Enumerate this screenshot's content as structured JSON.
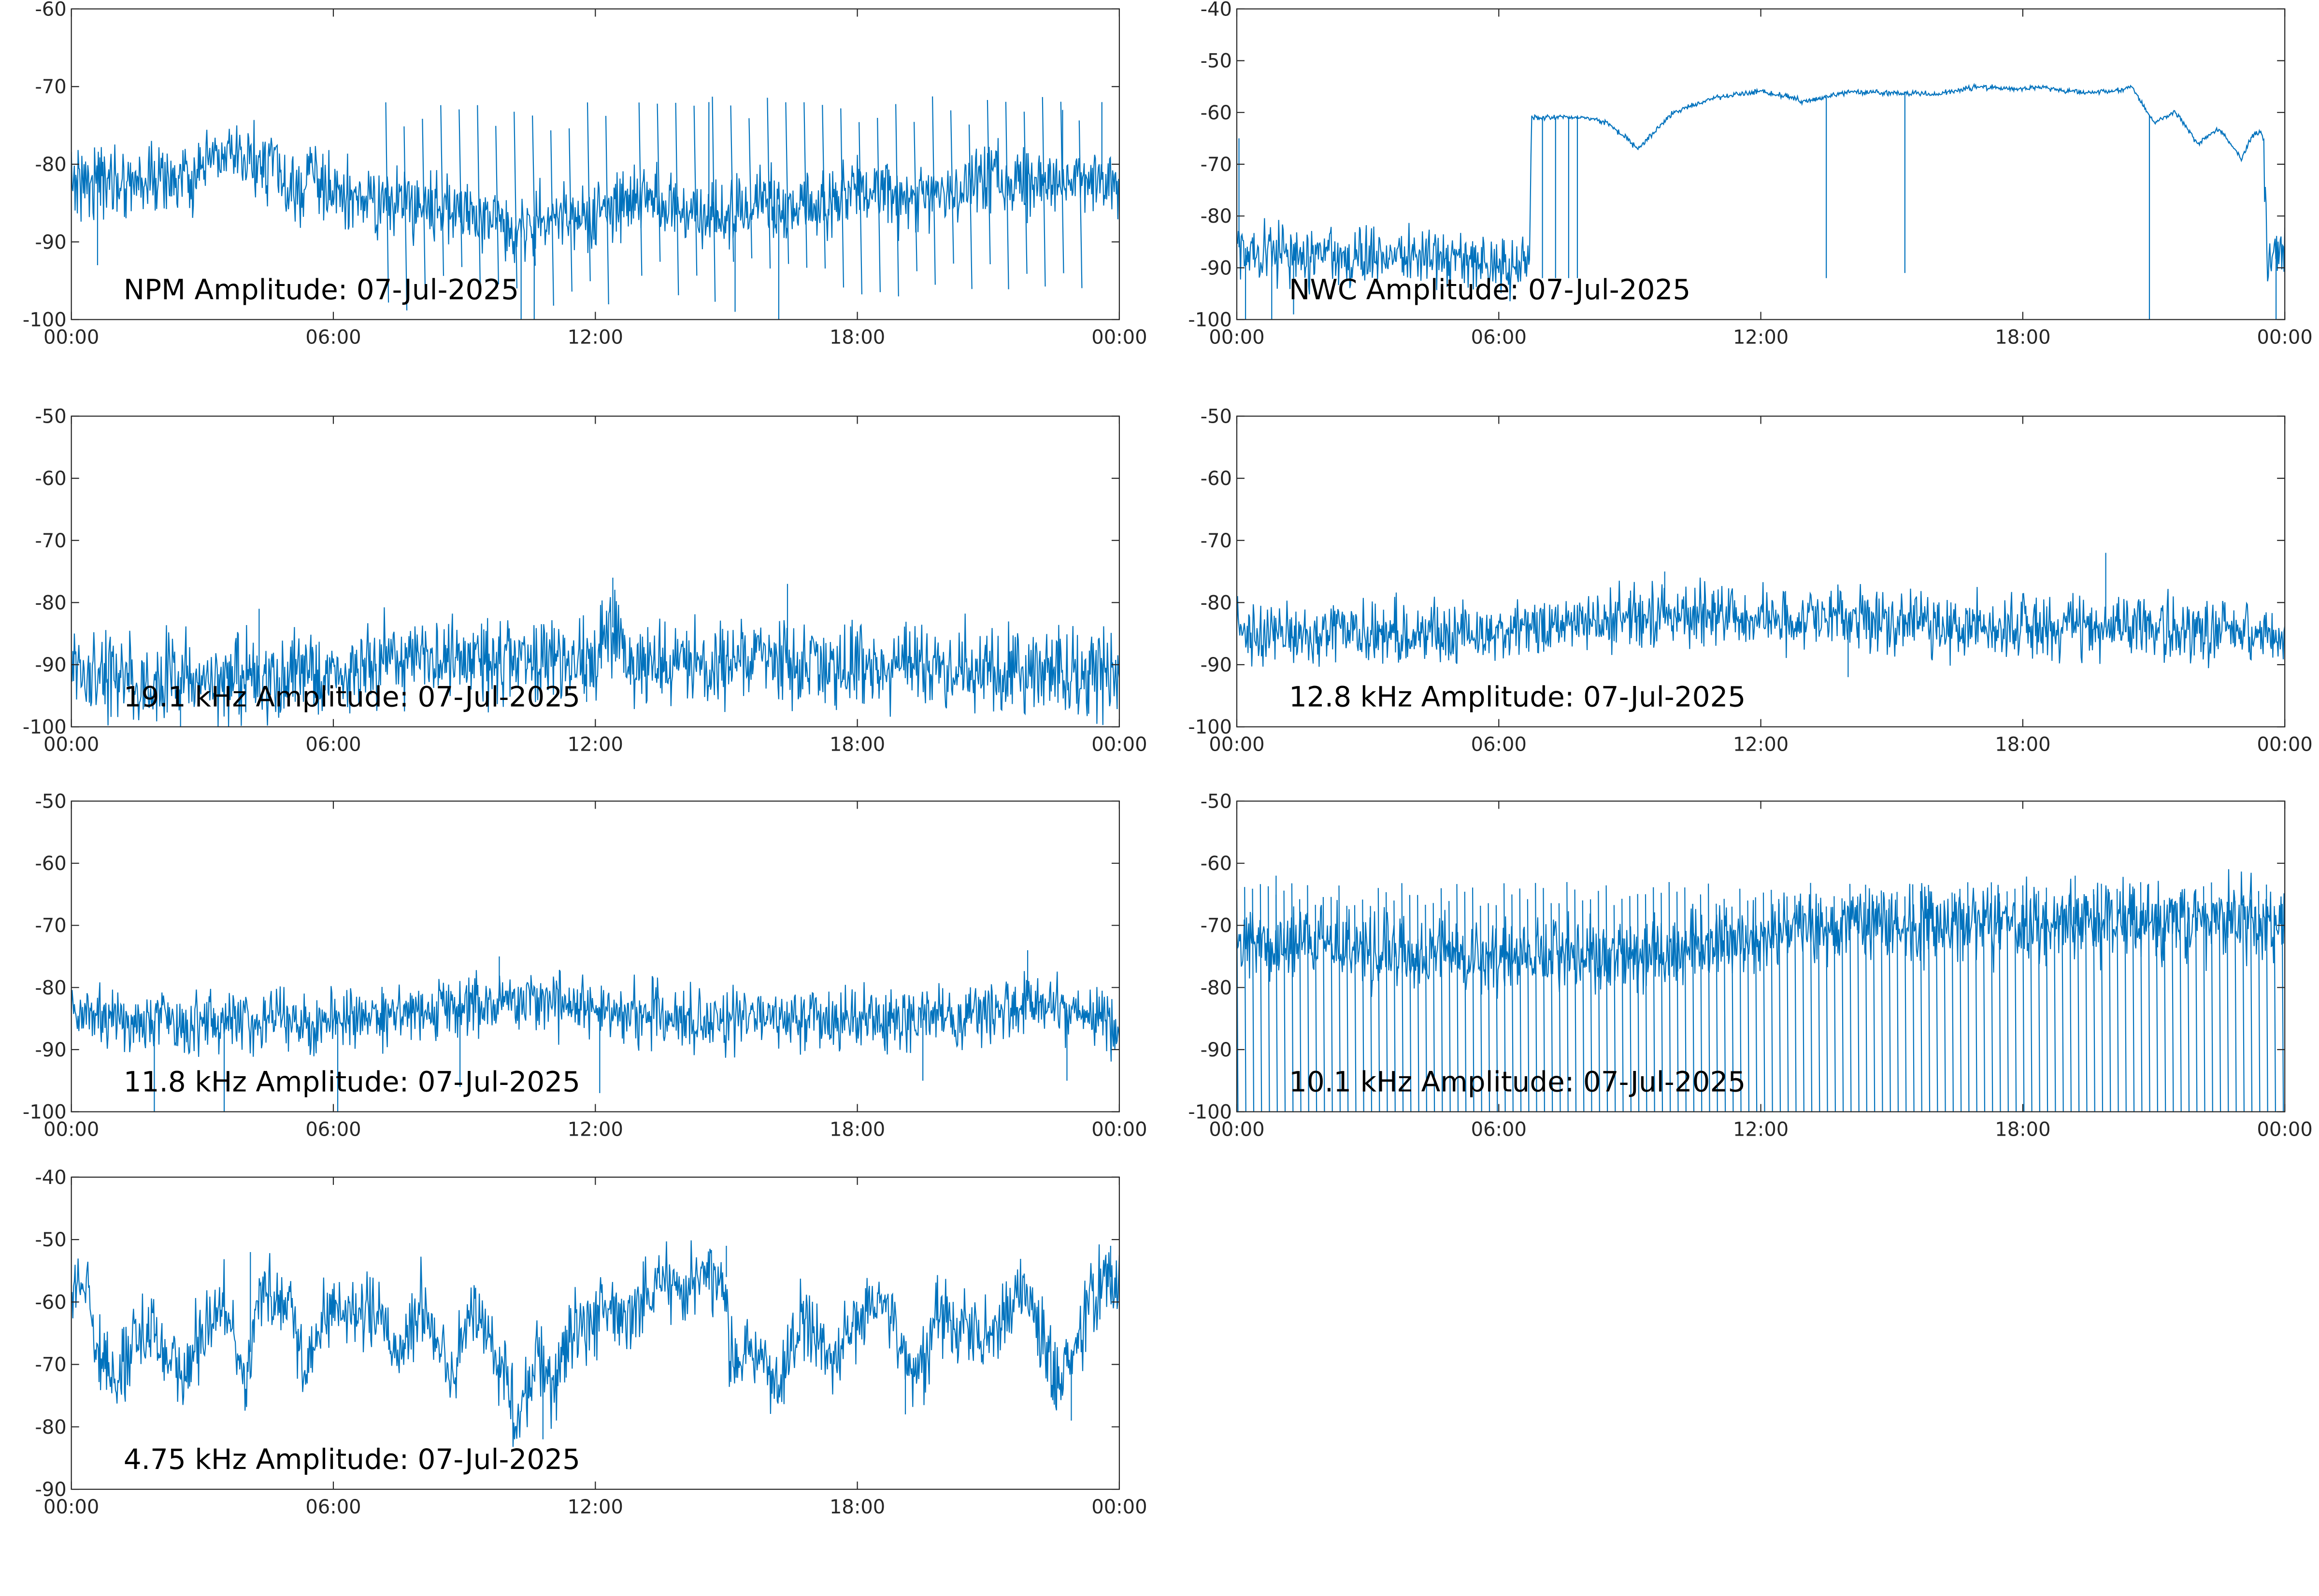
{
  "line_color": "#0072bd",
  "axis_color": "#262626",
  "time_ticks": [
    "00:00",
    "06:00",
    "12:00",
    "18:00",
    "00:00"
  ],
  "chart_data": [
    {
      "type": "line",
      "title": "NPM Amplitude: 07-Jul-2025",
      "x_range": [
        "00:00",
        "24:00"
      ],
      "ylim": [
        -100,
        -60
      ],
      "yticks": [
        -60,
        -70,
        -80,
        -90,
        -100
      ],
      "grid": false,
      "base_profile": [
        [
          0,
          -82
        ],
        [
          3,
          -82
        ],
        [
          3.2,
          -79
        ],
        [
          4.7,
          -80
        ],
        [
          5,
          -85
        ],
        [
          5.5,
          -81
        ],
        [
          6,
          -84
        ],
        [
          7,
          -85
        ],
        [
          8,
          -85
        ],
        [
          9,
          -86
        ],
        [
          10,
          -88
        ],
        [
          11,
          -87
        ],
        [
          12,
          -87
        ],
        [
          13,
          -84
        ],
        [
          14,
          -86
        ],
        [
          15,
          -87
        ],
        [
          16,
          -85
        ],
        [
          17,
          -86
        ],
        [
          18,
          -83
        ],
        [
          19,
          -84
        ],
        [
          20,
          -84
        ],
        [
          21,
          -82
        ],
        [
          22,
          -82
        ],
        [
          24,
          -82
        ]
      ],
      "noise": 2.2,
      "drops": [
        [
          7.2,
          12.6,
          -74,
          -93,
          0.42
        ],
        [
          13,
          23.1,
          -73,
          -92,
          0.42
        ]
      ],
      "min_spikes": [
        [
          0.6,
          -93
        ],
        [
          10.3,
          -100
        ],
        [
          10.6,
          -100
        ],
        [
          15.2,
          -99
        ],
        [
          16.2,
          -100
        ]
      ],
      "max_spikes": [
        [
          14.6,
          -72
        ],
        [
          23.6,
          -72
        ],
        [
          22.7,
          -73
        ]
      ]
    },
    {
      "type": "line",
      "title": "NWC Amplitude: 07-Jul-2025",
      "x_range": [
        "00:00",
        "24:00"
      ],
      "ylim": [
        -100,
        -40
      ],
      "yticks": [
        -40,
        -50,
        -60,
        -70,
        -80,
        -90,
        -100
      ],
      "grid": false,
      "base_profile": [
        [
          0,
          -86
        ],
        [
          2,
          -88
        ],
        [
          4,
          -87
        ],
        [
          6.7,
          -90
        ],
        [
          6.75,
          -61
        ],
        [
          8,
          -61
        ],
        [
          8.5,
          -62
        ],
        [
          9.2,
          -67
        ],
        [
          10,
          -60
        ],
        [
          11,
          -57
        ],
        [
          12,
          -56
        ],
        [
          12.7,
          -57
        ],
        [
          13,
          -58
        ],
        [
          14,
          -56
        ],
        [
          16,
          -56.5
        ],
        [
          17,
          -55
        ],
        [
          18,
          -55.5
        ],
        [
          18.5,
          -55
        ],
        [
          19,
          -56
        ],
        [
          20,
          -56
        ],
        [
          20.5,
          -55
        ],
        [
          21,
          -62
        ],
        [
          21.5,
          -60
        ],
        [
          22,
          -66
        ],
        [
          22.5,
          -63
        ],
        [
          23,
          -69
        ],
        [
          23.3,
          -64
        ],
        [
          23.5,
          -64
        ],
        [
          23.6,
          -88
        ],
        [
          24,
          -86
        ]
      ],
      "noise": 2.0,
      "noise_zones": [
        [
          0,
          6.7,
          2.8
        ],
        [
          6.7,
          23.5,
          0.25
        ],
        [
          23.5,
          24,
          2.5
        ]
      ],
      "min_spikes": [
        [
          0.2,
          -100
        ],
        [
          0.8,
          -100
        ],
        [
          1.3,
          -99
        ],
        [
          7,
          -92
        ],
        [
          7.3,
          -92
        ],
        [
          7.6,
          -92
        ],
        [
          7.8,
          -92
        ],
        [
          13.5,
          -92
        ],
        [
          15.3,
          -91
        ],
        [
          20.9,
          -100
        ],
        [
          23.8,
          -100
        ]
      ],
      "max_spikes": [
        [
          0.05,
          -65
        ]
      ]
    },
    {
      "type": "line",
      "title": "19.1 kHz Amplitude: 07-Jul-2025",
      "x_range": [
        "00:00",
        "24:00"
      ],
      "ylim": [
        -100,
        -50
      ],
      "yticks": [
        -50,
        -60,
        -70,
        -80,
        -90,
        -100
      ],
      "grid": false,
      "base_profile": [
        [
          0,
          -92
        ],
        [
          5,
          -92
        ],
        [
          8,
          -89
        ],
        [
          10,
          -89
        ],
        [
          12,
          -90
        ],
        [
          12.3,
          -84
        ],
        [
          12.6,
          -84
        ],
        [
          12.7,
          -90
        ],
        [
          16,
          -89
        ],
        [
          20,
          -91
        ],
        [
          22,
          -91
        ],
        [
          24,
          -91
        ]
      ],
      "noise": 3.3,
      "min_spikes": [
        [
          2.5,
          -100
        ],
        [
          11.8,
          -96
        ]
      ],
      "max_spikes": [
        [
          4.3,
          -81
        ],
        [
          12.4,
          -76
        ],
        [
          16.4,
          -77
        ]
      ]
    },
    {
      "type": "line",
      "title": "12.8 kHz Amplitude: 07-Jul-2025",
      "x_range": [
        "00:00",
        "24:00"
      ],
      "ylim": [
        -100,
        -50
      ],
      "yticks": [
        -50,
        -60,
        -70,
        -80,
        -90,
        -100
      ],
      "grid": false,
      "base_profile": [
        [
          0,
          -85
        ],
        [
          5,
          -85
        ],
        [
          10,
          -82
        ],
        [
          12,
          -82
        ],
        [
          16,
          -84
        ],
        [
          20,
          -84
        ],
        [
          24,
          -85
        ]
      ],
      "noise": 2.5,
      "min_spikes": [
        [
          14,
          -92
        ]
      ],
      "max_spikes": [
        [
          9.8,
          -75
        ],
        [
          19.9,
          -72
        ]
      ]
    },
    {
      "type": "line",
      "title": "11.8 kHz Amplitude: 07-Jul-2025",
      "x_range": [
        "00:00",
        "24:00"
      ],
      "ylim": [
        -100,
        -50
      ],
      "yticks": [
        -50,
        -60,
        -70,
        -80,
        -90,
        -100
      ],
      "grid": false,
      "base_profile": [
        [
          0,
          -85
        ],
        [
          5,
          -86
        ],
        [
          8,
          -84
        ],
        [
          10,
          -82
        ],
        [
          14,
          -85
        ],
        [
          20,
          -85
        ],
        [
          22,
          -82
        ],
        [
          24,
          -86
        ]
      ],
      "noise": 2.5,
      "min_spikes": [
        [
          1.9,
          -100
        ],
        [
          3.5,
          -100
        ],
        [
          6.1,
          -100
        ],
        [
          8.9,
          -96
        ],
        [
          12.1,
          -97
        ],
        [
          19.5,
          -95
        ],
        [
          22.8,
          -95
        ]
      ],
      "max_spikes": [
        [
          9.8,
          -75
        ],
        [
          21.9,
          -74
        ]
      ]
    },
    {
      "type": "line",
      "title": "10.1 kHz Amplitude: 07-Jul-2025",
      "x_range": [
        "00:00",
        "24:00"
      ],
      "ylim": [
        -100,
        -50
      ],
      "yticks": [
        -50,
        -60,
        -70,
        -80,
        -90,
        -100
      ],
      "grid": false,
      "base_profile": [
        [
          0,
          -72
        ],
        [
          5,
          -75
        ],
        [
          10,
          -74
        ],
        [
          14,
          -70
        ],
        [
          18,
          -70
        ],
        [
          24,
          -69
        ]
      ],
      "noise": 3.0,
      "drops": [
        [
          0,
          24,
          -65,
          -100,
          0.18
        ]
      ],
      "min_spikes": [],
      "max_spikes": [
        [
          0.9,
          -62
        ],
        [
          19.2,
          -62
        ]
      ]
    },
    {
      "type": "line",
      "title": "4.75 kHz Amplitude: 07-Jul-2025",
      "x_range": [
        "00:00",
        "24:00"
      ],
      "ylim": [
        -90,
        -40
      ],
      "yticks": [
        -40,
        -50,
        -60,
        -70,
        -80,
        -90
      ],
      "grid": false,
      "base_profile": [
        [
          0,
          -57
        ],
        [
          0.4,
          -57
        ],
        [
          0.6,
          -68
        ],
        [
          1,
          -72
        ],
        [
          1.5,
          -65
        ],
        [
          2,
          -66
        ],
        [
          2.5,
          -72
        ],
        [
          3,
          -65
        ],
        [
          3.5,
          -60
        ],
        [
          4,
          -73
        ],
        [
          4.3,
          -58
        ],
        [
          5,
          -60
        ],
        [
          5.3,
          -72
        ],
        [
          6,
          -60
        ],
        [
          7,
          -62
        ],
        [
          7.5,
          -68
        ],
        [
          8,
          -60
        ],
        [
          8.7,
          -72
        ],
        [
          9.2,
          -60
        ],
        [
          9.7,
          -70
        ],
        [
          10.3,
          -78
        ],
        [
          10.7,
          -68
        ],
        [
          11,
          -74
        ],
        [
          11.5,
          -65
        ],
        [
          12,
          -62
        ],
        [
          12.8,
          -62
        ],
        [
          13.5,
          -57
        ],
        [
          14,
          -58
        ],
        [
          14.5,
          -56
        ],
        [
          15,
          -56
        ],
        [
          15.1,
          -70
        ],
        [
          15.6,
          -67
        ],
        [
          16.2,
          -73
        ],
        [
          16.8,
          -62
        ],
        [
          17.5,
          -70
        ],
        [
          18,
          -62
        ],
        [
          18.6,
          -60
        ],
        [
          19.3,
          -73
        ],
        [
          19.8,
          -62
        ],
        [
          20.5,
          -64
        ],
        [
          21,
          -67
        ],
        [
          21.8,
          -58
        ],
        [
          22.6,
          -73
        ],
        [
          23.2,
          -63
        ],
        [
          23.6,
          -56
        ],
        [
          24,
          -56
        ]
      ],
      "noise": 3.0,
      "min_spikes": [
        [
          10.8,
          -82
        ],
        [
          19.1,
          -78
        ],
        [
          22.9,
          -79
        ]
      ],
      "max_spikes": [
        [
          4.1,
          -52
        ],
        [
          15,
          -51
        ],
        [
          23.8,
          -51
        ]
      ]
    }
  ]
}
